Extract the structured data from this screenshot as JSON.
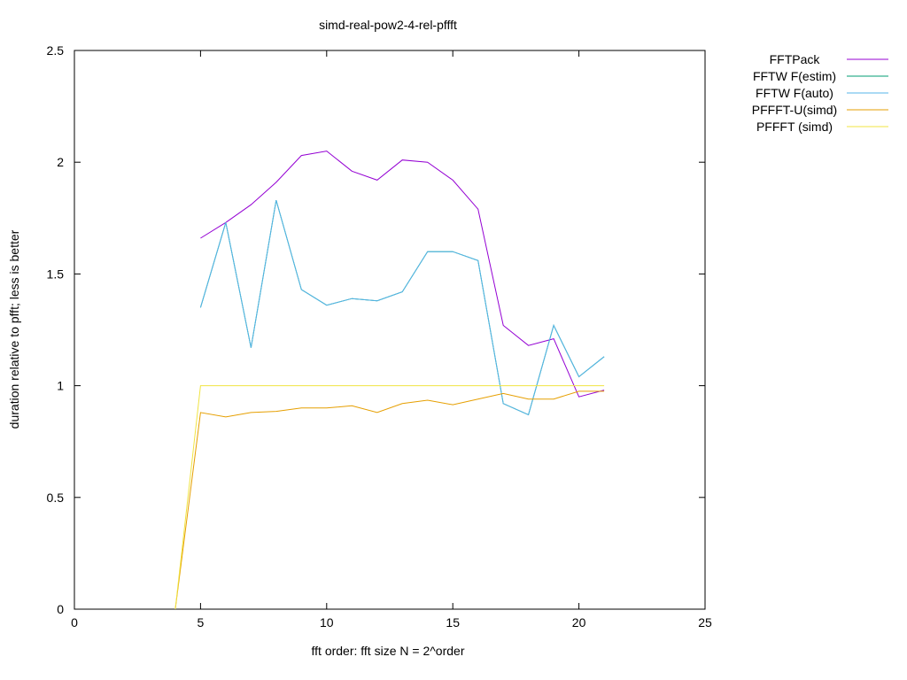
{
  "chart_data": {
    "type": "line",
    "title": "simd-real-pow2-4-rel-pffft",
    "xlabel": "fft order: fft size N = 2^order",
    "ylabel": "duration relative to pfft; less is better",
    "xlim": [
      0,
      25
    ],
    "ylim": [
      0,
      2.5
    ],
    "xticks": [
      0,
      5,
      10,
      15,
      20,
      25
    ],
    "yticks": [
      0,
      0.5,
      1,
      1.5,
      2,
      2.5
    ],
    "xtick_labels": [
      "0",
      "5",
      "10",
      "15",
      "20",
      "25"
    ],
    "ytick_labels": [
      "0",
      "0.5",
      "1",
      "1.5",
      "2",
      "2.5"
    ],
    "grid": false,
    "legend_position": "outside-top-right",
    "series": [
      {
        "name": "FFTPack",
        "color": "#9400d3",
        "x": [
          5,
          6,
          7,
          8,
          9,
          10,
          11,
          12,
          13,
          14,
          15,
          16,
          17,
          18,
          19,
          20,
          21
        ],
        "y": [
          1.66,
          1.73,
          1.81,
          1.91,
          2.03,
          2.05,
          1.96,
          1.92,
          2.01,
          2.0,
          1.92,
          1.79,
          1.27,
          1.18,
          1.21,
          0.95,
          0.98
        ]
      },
      {
        "name": "FFTW F(estim)",
        "color": "#009e73",
        "x": [
          5,
          6,
          7,
          8,
          9,
          10,
          11,
          12,
          13,
          14,
          15,
          16,
          17,
          18,
          19,
          20,
          21
        ],
        "y": [
          1.35,
          1.73,
          1.17,
          1.83,
          1.43,
          1.36,
          1.39,
          1.38,
          1.42,
          1.6,
          1.6,
          1.56,
          0.92,
          0.87,
          1.27,
          1.04,
          1.13
        ]
      },
      {
        "name": "FFTW F(auto)",
        "color": "#56b4e9",
        "x": [
          5,
          6,
          7,
          8,
          9,
          10,
          11,
          12,
          13,
          14,
          15,
          16,
          17,
          18,
          19,
          20,
          21
        ],
        "y": [
          1.35,
          1.73,
          1.17,
          1.83,
          1.43,
          1.36,
          1.39,
          1.38,
          1.42,
          1.6,
          1.6,
          1.56,
          0.92,
          0.87,
          1.27,
          1.04,
          1.13
        ]
      },
      {
        "name": "PFFFT-U(simd)",
        "color": "#e69f00",
        "x": [
          4,
          5,
          6,
          7,
          8,
          9,
          10,
          11,
          12,
          13,
          14,
          15,
          16,
          17,
          18,
          19,
          20,
          21
        ],
        "y": [
          0,
          0.88,
          0.86,
          0.88,
          0.885,
          0.9,
          0.9,
          0.91,
          0.88,
          0.92,
          0.935,
          0.915,
          0.94,
          0.965,
          0.94,
          0.94,
          0.975,
          0.975
        ]
      },
      {
        "name": "PFFFT (simd)",
        "color": "#f0e442",
        "x": [
          4,
          5,
          6,
          7,
          8,
          9,
          10,
          11,
          12,
          13,
          14,
          15,
          16,
          17,
          18,
          19,
          20,
          21
        ],
        "y": [
          0,
          1,
          1,
          1,
          1,
          1,
          1,
          1,
          1,
          1,
          1,
          1,
          1,
          1,
          1,
          1,
          1,
          1
        ]
      }
    ]
  }
}
